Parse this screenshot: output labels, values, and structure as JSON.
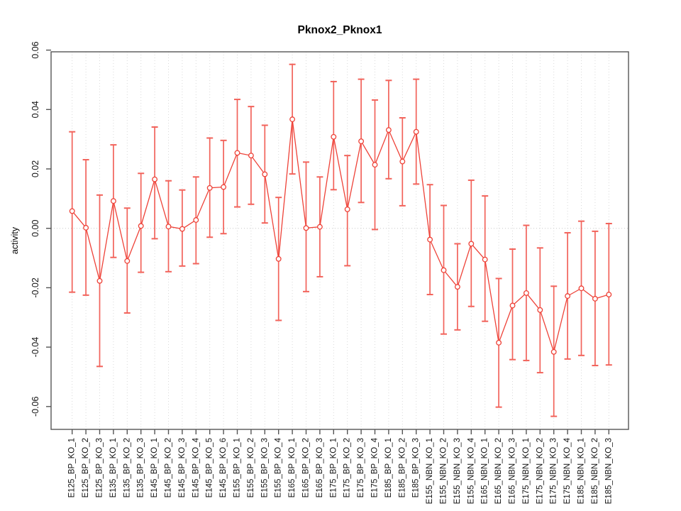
{
  "chart_data": {
    "type": "line",
    "subtype": "error-bar-series",
    "title": "Pknox2_Pknox1",
    "xlabel": "",
    "ylabel": "activity",
    "ylim": [
      -0.068,
      0.062
    ],
    "yticks": [
      0.06,
      0.04,
      0.02,
      0.0,
      -0.02,
      -0.04,
      -0.06
    ],
    "ytick_labels": [
      "0.06",
      "0.04",
      "0.02",
      "0.00",
      "-0.02",
      "-0.04",
      "-0.06"
    ],
    "grid": "vertical-dotted-per-category",
    "zero_reference_line": true,
    "legend": "none",
    "marker": "open-circle",
    "line_style": "solid",
    "series_color": "#ee4238",
    "error_bar_color": "#f2635b",
    "grid_color": "#d9d9d9",
    "axis_color": "#555555",
    "categories": [
      "E125_BP_KO_1",
      "E125_BP_KO_2",
      "E125_BP_KO_3",
      "E135_BP_KO_1",
      "E135_BP_KO_2",
      "E135_BP_KO_3",
      "E145_BP_KO_1",
      "E145_BP_KO_2",
      "E145_BP_KO_3",
      "E145_BP_KO_4",
      "E145_BP_KO_5",
      "E145_BP_KO_6",
      "E155_BP_KO_1",
      "E155_BP_KO_2",
      "E155_BP_KO_3",
      "E155_BP_KO_4",
      "E165_BP_KO_1",
      "E165_BP_KO_2",
      "E165_BP_KO_3",
      "E175_BP_KO_1",
      "E175_BP_KO_2",
      "E175_BP_KO_3",
      "E175_BP_KO_4",
      "E185_BP_KO_1",
      "E185_BP_KO_2",
      "E185_BP_KO_3",
      "E155_NBN_KO_1",
      "E155_NBN_KO_2",
      "E155_NBN_KO_3",
      "E155_NBN_KO_4",
      "E165_NBN_KO_1",
      "E165_NBN_KO_2",
      "E165_NBN_KO_3",
      "E175_NBN_KO_1",
      "E175_NBN_KO_2",
      "E175_NBN_KO_3",
      "E175_NBN_KO_4",
      "E185_NBN_KO_1",
      "E185_NBN_KO_2",
      "E185_NBN_KO_3"
    ],
    "series": [
      {
        "name": "activity",
        "values": [
          0.0058,
          0.0002,
          -0.0177,
          0.0092,
          -0.011,
          0.0008,
          0.0165,
          0.0006,
          -0.0002,
          0.0028,
          0.0136,
          0.0139,
          0.0254,
          0.0245,
          0.0182,
          -0.0103,
          0.0367,
          0.0001,
          0.0005,
          0.0308,
          0.0064,
          0.0293,
          0.0214,
          0.0331,
          0.0225,
          0.0325,
          -0.0038,
          -0.0141,
          -0.0197,
          -0.0052,
          -0.0105,
          -0.0385,
          -0.026,
          -0.0218,
          -0.0275,
          -0.0416,
          -0.0228,
          -0.0202,
          -0.0237,
          -0.0223
        ],
        "lower": [
          -0.0215,
          -0.0225,
          -0.0465,
          -0.0098,
          -0.0285,
          -0.0148,
          -0.0035,
          -0.0146,
          -0.0127,
          -0.0119,
          -0.003,
          -0.0018,
          0.0072,
          0.0081,
          0.0018,
          -0.031,
          0.0183,
          -0.0213,
          -0.0163,
          0.013,
          -0.0126,
          0.0087,
          -0.0004,
          0.0167,
          0.0076,
          0.0149,
          -0.0223,
          -0.0356,
          -0.0342,
          -0.0263,
          -0.0313,
          -0.0602,
          -0.0442,
          -0.0445,
          -0.0486,
          -0.0633,
          -0.044,
          -0.0428,
          -0.0462,
          -0.046
        ],
        "upper": [
          0.0325,
          0.0231,
          0.0112,
          0.0281,
          0.0068,
          0.0185,
          0.0341,
          0.016,
          0.0129,
          0.0173,
          0.0304,
          0.0296,
          0.0434,
          0.041,
          0.0347,
          0.0104,
          0.0552,
          0.0223,
          0.0173,
          0.0494,
          0.0245,
          0.0502,
          0.0432,
          0.0498,
          0.0372,
          0.0502,
          0.0147,
          0.0077,
          -0.0052,
          0.0162,
          0.0109,
          -0.0169,
          -0.007,
          0.001,
          -0.0066,
          -0.0195,
          -0.0015,
          0.0024,
          -0.001,
          0.0016
        ]
      }
    ]
  }
}
